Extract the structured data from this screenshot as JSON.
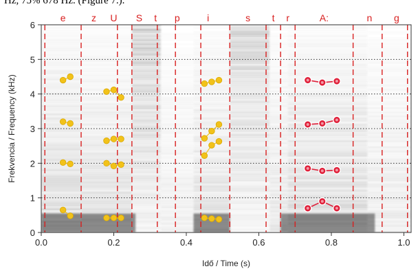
{
  "caption": "Hz, 75% 678 Hz. (Figure 7.).",
  "chart_data": {
    "type": "scatter",
    "xlabel": "Idő / Time (s)",
    "ylabel": "Frekvencia / Frequency (kHz)",
    "xlim": [
      0.0,
      1.02
    ],
    "ylim": [
      0,
      6
    ],
    "x_ticks": [
      0.0,
      0.2,
      0.4,
      0.6,
      0.8,
      1.0
    ],
    "x_tick_labels": [
      "0.0",
      "0.2",
      "0.4",
      "0.6",
      "0.8",
      "1.0"
    ],
    "y_ticks": [
      0,
      1,
      2,
      3,
      4,
      5,
      6
    ],
    "y_tick_labels": [
      "0",
      "1",
      "2",
      "3",
      "4",
      "5",
      "6"
    ],
    "horizontal_gridlines": [
      1,
      2,
      3,
      4,
      5
    ],
    "segment_boundaries": [
      0.01,
      0.11,
      0.21,
      0.25,
      0.32,
      0.37,
      0.44,
      0.52,
      0.62,
      0.66,
      0.7,
      0.86,
      0.94,
      1.01
    ],
    "segment_labels": [
      {
        "text": "e",
        "x": 0.06
      },
      {
        "text": "z",
        "x": 0.145
      },
      {
        "text": "U",
        "x": 0.2
      },
      {
        "text": "S",
        "x": 0.27
      },
      {
        "text": "t",
        "x": 0.315
      },
      {
        "text": "p",
        "x": 0.375
      },
      {
        "text": "i",
        "x": 0.46
      },
      {
        "text": "s",
        "x": 0.57
      },
      {
        "text": "t",
        "x": 0.64
      },
      {
        "text": "r",
        "x": 0.68
      },
      {
        "text": "A:",
        "x": 0.78
      },
      {
        "text": "n",
        "x": 0.905
      },
      {
        "text": "g",
        "x": 0.98
      }
    ],
    "colors": {
      "yellow_series": "#f2c21a",
      "red_series": "#e0203a",
      "boundary": "#d81e1e",
      "grid": "#333333"
    },
    "series": [
      {
        "color": "yellow",
        "points": [
          [
            0.06,
            0.65
          ],
          [
            0.08,
            0.48
          ]
        ]
      },
      {
        "color": "yellow",
        "points": [
          [
            0.06,
            2.02
          ],
          [
            0.08,
            1.98
          ]
        ]
      },
      {
        "color": "yellow",
        "points": [
          [
            0.06,
            3.2
          ],
          [
            0.08,
            3.15
          ]
        ]
      },
      {
        "color": "yellow",
        "points": [
          [
            0.06,
            4.4
          ],
          [
            0.08,
            4.5
          ]
        ]
      },
      {
        "color": "yellow",
        "points": [
          [
            0.18,
            0.42
          ],
          [
            0.2,
            0.42
          ],
          [
            0.22,
            0.42
          ]
        ]
      },
      {
        "color": "yellow",
        "points": [
          [
            0.18,
            2.0
          ],
          [
            0.2,
            1.92
          ],
          [
            0.22,
            1.96
          ]
        ]
      },
      {
        "color": "yellow",
        "points": [
          [
            0.18,
            2.65
          ],
          [
            0.2,
            2.7
          ],
          [
            0.22,
            2.7
          ]
        ]
      },
      {
        "color": "yellow",
        "points": [
          [
            0.18,
            4.07
          ],
          [
            0.2,
            4.12
          ],
          [
            0.22,
            3.9
          ]
        ]
      },
      {
        "color": "yellow",
        "points": [
          [
            0.45,
            0.42
          ],
          [
            0.47,
            0.4
          ],
          [
            0.49,
            0.38
          ]
        ]
      },
      {
        "color": "yellow",
        "points": [
          [
            0.45,
            2.22
          ],
          [
            0.47,
            2.52
          ],
          [
            0.49,
            2.63
          ]
        ]
      },
      {
        "color": "yellow",
        "points": [
          [
            0.45,
            2.72
          ],
          [
            0.47,
            2.93
          ],
          [
            0.49,
            3.12
          ]
        ]
      },
      {
        "color": "yellow",
        "points": [
          [
            0.45,
            4.3
          ],
          [
            0.47,
            4.35
          ],
          [
            0.49,
            4.4
          ]
        ]
      },
      {
        "color": "red",
        "points": [
          [
            0.735,
            0.7
          ],
          [
            0.775,
            0.9
          ],
          [
            0.815,
            0.7
          ]
        ]
      },
      {
        "color": "red",
        "points": [
          [
            0.735,
            1.85
          ],
          [
            0.775,
            1.78
          ],
          [
            0.815,
            1.8
          ]
        ]
      },
      {
        "color": "red",
        "points": [
          [
            0.735,
            3.12
          ],
          [
            0.775,
            3.15
          ],
          [
            0.815,
            3.25
          ]
        ]
      },
      {
        "color": "red",
        "points": [
          [
            0.735,
            4.4
          ],
          [
            0.775,
            4.33
          ],
          [
            0.815,
            4.37
          ]
        ]
      }
    ]
  }
}
